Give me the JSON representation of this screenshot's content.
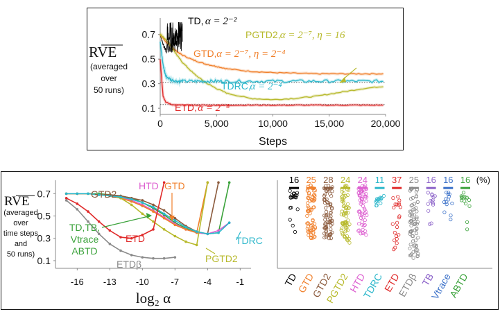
{
  "colors": {
    "TD": "#000000",
    "GTD": "#f07f2a",
    "GTD2": "#8b5a3c",
    "PGTD2": "#b7b92b",
    "HTD": "#dd5fd0",
    "TDRC": "#2cb7cb",
    "ETD": "#e02a2a",
    "ETDbeta": "#8a8a8a",
    "TB": "#8a60c8",
    "Vtrace": "#3a70c8",
    "ABTD": "#3aa23a"
  },
  "chart_data": [
    {
      "type": "line",
      "title": "",
      "ylabel_main": "RVE",
      "ylabel_sub": [
        "(averaged",
        "over",
        "50 runs)"
      ],
      "xlabel": "Steps",
      "xlim": [
        0,
        20000
      ],
      "ylim": [
        0.05,
        0.8
      ],
      "xticks": [
        0,
        5000,
        10000,
        15000,
        20000
      ],
      "xtick_labels": [
        "0",
        "5,000",
        "10,000",
        "15,000",
        "20,000"
      ],
      "yticks": [
        0.1,
        0.3,
        0.5,
        0.7
      ],
      "ytick_labels": [
        "0.1",
        "0.3",
        "0.5",
        "0.7"
      ],
      "reference_lines": [
        0.31,
        0.13
      ],
      "x": [
        0,
        250,
        500,
        1000,
        1500,
        2000,
        3000,
        4000,
        5000,
        6000,
        8000,
        10000,
        12000,
        14000,
        16000,
        18000,
        20000
      ],
      "series": [
        {
          "name": "TD",
          "label": "TD,",
          "alpha": "α = 2⁻²",
          "key": "TD",
          "values": [
            0.7,
            0.62,
            0.58,
            0.6,
            0.7,
            0.8,
            null,
            null,
            null,
            null,
            null,
            null,
            null,
            null,
            null,
            null,
            null
          ]
        },
        {
          "name": "GTD",
          "label": "GTD,",
          "alpha": "α = 2⁻⁷, η = 2⁻⁴",
          "key": "GTD",
          "values": [
            0.7,
            0.67,
            0.64,
            0.6,
            0.56,
            0.53,
            0.49,
            0.46,
            0.44,
            0.42,
            0.4,
            0.39,
            0.385,
            0.38,
            0.38,
            0.38,
            0.38
          ]
        },
        {
          "name": "PGTD2",
          "label": "PGTD2,",
          "alpha": "α = 2⁻⁷, η = 16",
          "key": "PGTD2",
          "values": [
            0.7,
            0.68,
            0.66,
            0.6,
            0.53,
            0.47,
            0.38,
            0.31,
            0.26,
            0.22,
            0.18,
            0.17,
            0.18,
            0.2,
            0.23,
            0.26,
            0.28
          ]
        },
        {
          "name": "TDRC",
          "label": "TDRC,",
          "alpha": "α = 2⁻⁴",
          "key": "TDRC",
          "values": [
            0.65,
            0.45,
            0.36,
            0.33,
            0.32,
            0.32,
            0.32,
            0.32,
            0.32,
            0.32,
            0.32,
            0.32,
            0.32,
            0.32,
            0.32,
            0.32,
            0.32
          ]
        },
        {
          "name": "ETD",
          "label": "ETD,",
          "alpha": "α = 2⁻⁸",
          "key": "ETD",
          "values": [
            0.5,
            0.2,
            0.15,
            0.13,
            0.125,
            0.125,
            0.125,
            0.125,
            0.125,
            0.125,
            0.125,
            0.125,
            0.125,
            0.125,
            0.125,
            0.125,
            0.125
          ]
        }
      ]
    },
    {
      "type": "line",
      "ylabel_main": "RVE",
      "ylabel_sub": [
        "(averaged",
        "over",
        "time steps",
        "and",
        "50 runs)"
      ],
      "xlabel": "log₂ α",
      "xlim": [
        -18,
        0
      ],
      "ylim": [
        0.05,
        0.82
      ],
      "xticks": [
        -16,
        -13,
        -10,
        -7,
        -4,
        -1
      ],
      "xtick_labels": [
        "-16",
        "-13",
        "-10",
        "-7",
        "-4",
        "-1"
      ],
      "yticks": [
        0.1,
        0.3,
        0.5,
        0.7
      ],
      "ytick_labels": [
        "0.1",
        "0.3",
        "0.5",
        "0.7"
      ],
      "x": [
        -17,
        -16,
        -15,
        -14,
        -13,
        -12,
        -11,
        -10,
        -9,
        -8,
        -7,
        -6,
        -5,
        -4,
        -3,
        -2
      ],
      "series": [
        {
          "name": "TD,TB,Vtrace,ABTD",
          "label_lines": [
            "TD,TB,",
            "Vtrace",
            "ABTD"
          ],
          "key": "ABTD",
          "values": [
            0.7,
            0.7,
            0.7,
            0.7,
            0.69,
            0.68,
            0.66,
            0.62,
            0.57,
            0.51,
            0.44,
            0.39,
            0.35,
            0.34,
            0.35,
            0.8
          ]
        },
        {
          "name": "GTD2",
          "label_lines": [
            "GTD2"
          ],
          "key": "GTD2",
          "values": [
            0.7,
            0.7,
            0.7,
            0.69,
            0.69,
            0.68,
            0.66,
            0.64,
            0.6,
            0.55,
            0.48,
            0.41,
            0.36,
            0.34,
            0.8,
            null
          ]
        },
        {
          "name": "HTD",
          "label_lines": [
            "HTD"
          ],
          "key": "HTD",
          "values": [
            0.7,
            0.7,
            0.7,
            0.69,
            0.68,
            0.67,
            0.64,
            0.6,
            0.55,
            0.49,
            0.43,
            0.38,
            0.35,
            0.34,
            0.37,
            0.44
          ]
        },
        {
          "name": "GTD",
          "label_lines": [
            "GTD"
          ],
          "key": "GTD",
          "values": [
            0.7,
            0.7,
            0.7,
            0.69,
            0.68,
            0.66,
            0.63,
            0.59,
            0.54,
            0.48,
            0.42,
            0.38,
            0.35,
            0.8,
            null,
            null
          ]
        },
        {
          "name": "PGTD2",
          "label_lines": [
            "PGTD2"
          ],
          "key": "PGTD2",
          "values": [
            0.7,
            0.7,
            0.7,
            0.69,
            0.68,
            0.66,
            0.6,
            0.52,
            0.45,
            0.38,
            0.32,
            0.27,
            0.24,
            0.8,
            null,
            null
          ]
        },
        {
          "name": "TDRC",
          "label_lines": [
            "TDRC"
          ],
          "key": "TDRC",
          "values": [
            0.7,
            0.7,
            0.7,
            0.69,
            0.68,
            0.67,
            0.65,
            0.62,
            0.58,
            0.52,
            0.46,
            0.4,
            0.36,
            0.34,
            0.35,
            0.44
          ]
        },
        {
          "name": "ETD",
          "label_lines": [
            "ETD"
          ],
          "key": "ETD",
          "values": [
            0.66,
            0.61,
            0.54,
            0.45,
            0.37,
            0.31,
            0.3,
            0.33,
            0.38,
            0.8,
            null,
            null,
            null,
            null,
            null,
            null
          ]
        },
        {
          "name": "ETDβ",
          "label_lines": [
            "ETDβ"
          ],
          "key": "ETDbeta",
          "values": [
            0.64,
            0.56,
            0.45,
            0.34,
            0.25,
            0.19,
            0.15,
            0.13,
            0.12,
            0.12,
            0.13,
            null,
            null,
            null,
            null,
            null
          ]
        }
      ]
    },
    {
      "type": "scatter",
      "ylim": [
        0.05,
        0.82
      ],
      "counts_unit": "(%)",
      "columns": [
        {
          "name": "TD",
          "count": "16",
          "key": "TD",
          "range": [
            0.32,
            0.74
          ],
          "dense": [
            0.66,
            0.71
          ],
          "n": 20
        },
        {
          "name": "GTD",
          "count": "25",
          "key": "GTD",
          "range": [
            0.3,
            0.78
          ],
          "dense": [
            0.3,
            0.78
          ],
          "n": 70
        },
        {
          "name": "GTD2",
          "count": "28",
          "key": "GTD2",
          "range": [
            0.3,
            0.78
          ],
          "dense": [
            0.3,
            0.78
          ],
          "n": 70
        },
        {
          "name": "PGTD2",
          "count": "24",
          "key": "PGTD2",
          "range": [
            0.2,
            0.78
          ],
          "dense": [
            0.25,
            0.78
          ],
          "n": 70
        },
        {
          "name": "HTD",
          "count": "24",
          "key": "HTD",
          "range": [
            0.33,
            0.78
          ],
          "dense": [
            0.33,
            0.78
          ],
          "n": 60
        },
        {
          "name": "TDRC",
          "count": "11",
          "key": "TDRC",
          "range": [
            0.3,
            0.72
          ],
          "dense": [
            0.6,
            0.72
          ],
          "n": 14
        },
        {
          "name": "ETD",
          "count": "37",
          "key": "ETD",
          "range": [
            0.12,
            0.75
          ],
          "dense": [
            0.2,
            0.7
          ],
          "n": 22
        },
        {
          "name": "ETDβ",
          "count": "25",
          "key": "ETDbeta",
          "range": [
            0.12,
            0.75
          ],
          "dense": [
            0.12,
            0.75
          ],
          "n": 70
        },
        {
          "name": "TB",
          "count": "16",
          "key": "TB",
          "range": [
            0.35,
            0.72
          ],
          "dense": [
            0.6,
            0.72
          ],
          "n": 14
        },
        {
          "name": "Vtrace",
          "count": "16",
          "key": "Vtrace",
          "range": [
            0.35,
            0.72
          ],
          "dense": [
            0.6,
            0.72
          ],
          "n": 14
        },
        {
          "name": "ABTD",
          "count": "16",
          "key": "ABTD",
          "range": [
            0.35,
            0.72
          ],
          "dense": [
            0.6,
            0.72
          ],
          "n": 14
        }
      ]
    }
  ]
}
